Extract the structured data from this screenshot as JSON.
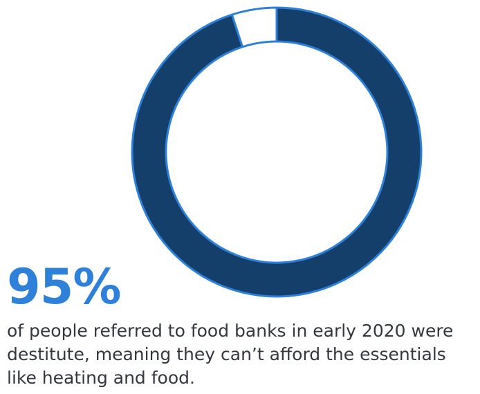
{
  "stat": {
    "value_text": "95%",
    "caption": "of people referred to food banks in early 2020 were destitute, meaning they can’t afford the essentials like heating and food."
  },
  "colors": {
    "filled": "#143f6b",
    "remainder": "#ffffff",
    "outline": "#2f80d8",
    "stat_text": "#2f80d8",
    "body_text": "#333840"
  },
  "chart_data": {
    "type": "pie",
    "variant": "donut",
    "title": "",
    "slices": [
      {
        "value": 95
      },
      {
        "value": 5
      }
    ],
    "legend": "none",
    "grid": false
  }
}
